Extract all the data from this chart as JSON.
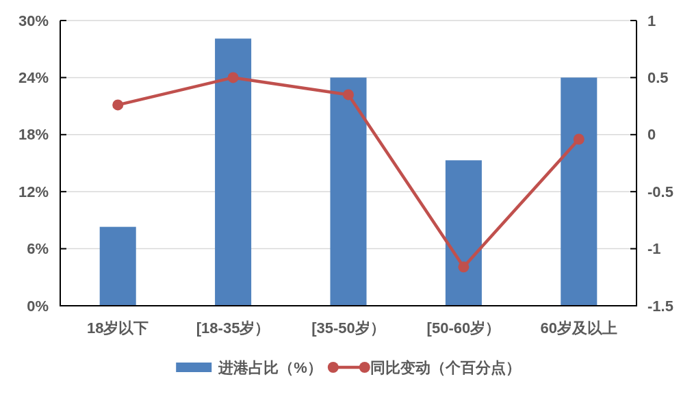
{
  "chart_data": {
    "type": "bar",
    "categories": [
      "18岁以下",
      "[18-35岁）",
      "[35-50岁）",
      "[50-60岁）",
      "60岁及以上"
    ],
    "series": [
      {
        "name": "进港占比（%）",
        "type": "bar",
        "color": "#4f81bd",
        "values": [
          8.3,
          28.1,
          24.0,
          15.3,
          24.0
        ]
      },
      {
        "name": "同比变动（个百分点）",
        "type": "line",
        "axis": "y2",
        "color": "#c0504d",
        "values": [
          0.26,
          0.5,
          0.35,
          -1.16,
          -0.04
        ]
      }
    ],
    "ylim": [
      0,
      30
    ],
    "yticks": [
      {
        "value": 0,
        "label": "0%"
      },
      {
        "value": 6,
        "label": "6%"
      },
      {
        "value": 12,
        "label": "12%"
      },
      {
        "value": 18,
        "label": "18%"
      },
      {
        "value": 24,
        "label": "24%"
      },
      {
        "value": 30,
        "label": "30%"
      }
    ],
    "y2lim": [
      -1.5,
      1
    ],
    "y2ticks": [
      -1.5,
      -1,
      -0.5,
      0,
      0.5,
      1
    ],
    "grid": "y",
    "legend": "bottom",
    "marker": "circle"
  }
}
